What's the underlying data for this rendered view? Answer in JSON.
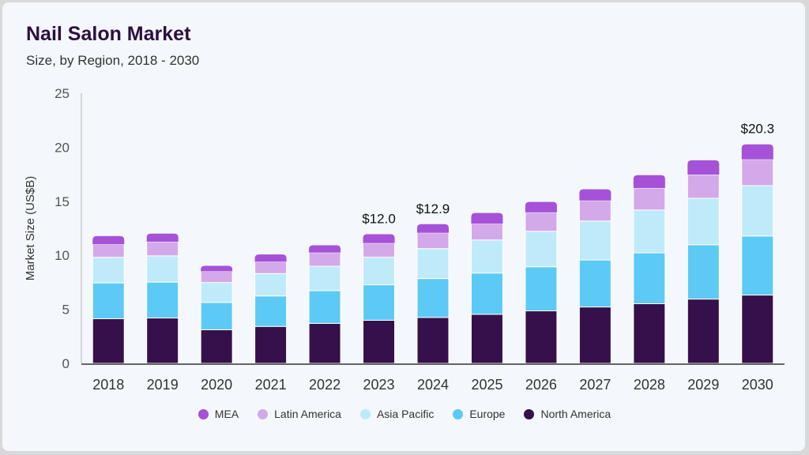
{
  "chart_data": {
    "type": "bar",
    "stacked": true,
    "title": "Nail Salon Market",
    "subtitle": "Size, by Region, 2018 - 2030",
    "xlabel": "",
    "ylabel": "Market Size (US$B)",
    "ylim": [
      0,
      25
    ],
    "yticks": [
      "0",
      "5",
      "10",
      "15",
      "20",
      "25"
    ],
    "grid": false,
    "legend_position": "bottom",
    "categories": [
      "2018",
      "2019",
      "2020",
      "2021",
      "2022",
      "2023",
      "2024",
      "2025",
      "2026",
      "2027",
      "2028",
      "2029",
      "2030"
    ],
    "series": [
      {
        "name": "North America",
        "color": "#36104a",
        "values": [
          4.13,
          4.2,
          3.11,
          3.42,
          3.7,
          3.99,
          4.25,
          4.54,
          4.86,
          5.22,
          5.52,
          5.95,
          6.32
        ]
      },
      {
        "name": "Europe",
        "color": "#5ccaf4",
        "values": [
          3.32,
          3.32,
          2.52,
          2.82,
          3.03,
          3.28,
          3.6,
          3.82,
          4.08,
          4.35,
          4.71,
          5.03,
          5.47
        ]
      },
      {
        "name": "Asia Pacific",
        "color": "#bfeaf9",
        "values": [
          2.36,
          2.43,
          1.85,
          2.07,
          2.26,
          2.55,
          2.77,
          3.06,
          3.28,
          3.6,
          3.96,
          4.3,
          4.66
        ]
      },
      {
        "name": "Latin America",
        "color": "#d3a9ea",
        "values": [
          1.21,
          1.31,
          1.04,
          1.09,
          1.26,
          1.31,
          1.46,
          1.5,
          1.75,
          1.9,
          2.04,
          2.19,
          2.43
        ]
      },
      {
        "name": "MEA",
        "color": "#a652d8",
        "values": [
          0.76,
          0.75,
          0.51,
          0.68,
          0.68,
          0.82,
          0.8,
          1.0,
          0.97,
          1.04,
          1.19,
          1.33,
          1.39
        ]
      }
    ],
    "annotations": [
      {
        "category": "2023",
        "label": "$12.0"
      },
      {
        "category": "2024",
        "label": "$12.9"
      },
      {
        "category": "2030",
        "label": "$20.3"
      }
    ],
    "legend_order": [
      "MEA",
      "Latin America",
      "Asia Pacific",
      "Europe",
      "North America"
    ]
  }
}
